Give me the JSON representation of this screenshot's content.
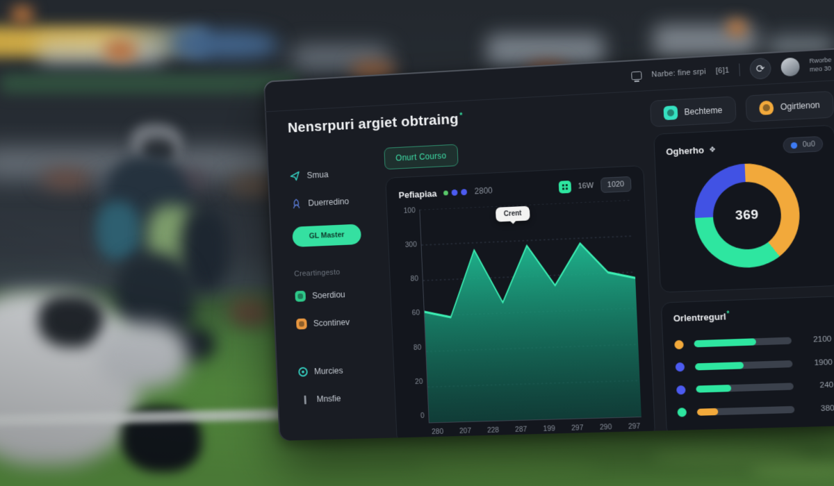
{
  "topbar": {
    "device_label": "Narbe: fine srpi",
    "count_label": "[6]1",
    "user_name": "Rworbe",
    "user_sub": "meo 30"
  },
  "icons": {
    "refresh_glyph": "⟳",
    "diamond_glyph": "❖"
  },
  "header": {
    "title": "Nensrpuri argiet obtraing",
    "title_mark": "*",
    "course_button": "Onurt Courso",
    "actions": [
      {
        "label": "Bechteme",
        "icon": "puzzle-icon",
        "color": "#35E0C0"
      },
      {
        "label": "Ogirtlenon",
        "icon": "bell-icon",
        "color": "#F2A93B"
      }
    ]
  },
  "sidebar": {
    "section_label": "Creartingesto",
    "items": [
      {
        "label": "Smua",
        "icon": "send-icon"
      },
      {
        "label": "Duerredino",
        "icon": "rocket-icon"
      },
      {
        "label": "GL Master",
        "icon": "none"
      },
      {
        "label": "Soerdiou",
        "icon": "green-square-icon"
      },
      {
        "label": "Scontinev",
        "icon": "orange-square-icon"
      },
      {
        "label": "Murcies",
        "icon": "circle-icon"
      },
      {
        "label": "Mnsfie",
        "icon": "bar-icon"
      }
    ]
  },
  "chart_data": [
    {
      "type": "area",
      "title": "Pefiapiaa",
      "legend_dots": [
        "#59C96A",
        "#4C5BF0",
        "#4C5BF0"
      ],
      "legend_value": "2800",
      "badge_value": "16W",
      "range_pill": "1020",
      "tooltip": "Crent",
      "x_labels": [
        "280",
        "207",
        "228",
        "287",
        "199",
        "297",
        "290",
        "297"
      ],
      "y_tick_labels": [
        "100",
        "300",
        "80",
        "60",
        "80",
        "20",
        "0"
      ],
      "values": [
        52,
        49,
        80,
        55,
        81,
        62,
        81,
        67,
        64
      ],
      "ylim": [
        0,
        100
      ],
      "grid": true,
      "line_color": "#3CF0B4",
      "fill_top": "#1FB991",
      "fill_bottom": "#0E5B4C"
    },
    {
      "type": "pie",
      "title": "Ogherho",
      "pill_label": "0u0",
      "center_label": "369",
      "segments": [
        {
          "label": "segment-1",
          "value": 40,
          "color": "#F2A93B"
        },
        {
          "label": "segment-2",
          "value": 35,
          "color": "#2EE6A0"
        },
        {
          "label": "segment-3",
          "value": 25,
          "color": "#4152E4"
        }
      ]
    },
    {
      "type": "bar",
      "orientation": "horizontal",
      "title": "Orlentregurl",
      "title_mark": "*",
      "rows": [
        {
          "dot_color": "#F2A93B",
          "bar_color": "#2EE6A0",
          "pct": 64,
          "value": "2100"
        },
        {
          "dot_color": "#4C5BF0",
          "bar_color": "#2EE6A0",
          "pct": 50,
          "value": "1900"
        },
        {
          "dot_color": "#4C5BF0",
          "bar_color": "#2EE6A0",
          "pct": 36,
          "value": "240"
        },
        {
          "dot_color": "#2EE6A0",
          "bar_color": "#F2A93B",
          "pct": 22,
          "value": "380"
        }
      ]
    }
  ],
  "colors": {
    "mint": "#2EE6A0",
    "blue": "#4C5BF0",
    "orange": "#F2A93B"
  }
}
